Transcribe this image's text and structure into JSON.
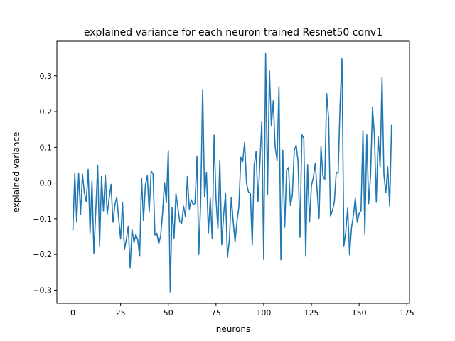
{
  "chart_data": {
    "type": "line",
    "title": "explained variance for each neuron trained Resnet50 conv1",
    "xlabel": "neurons",
    "ylabel": "explained variance",
    "xlim": [
      -8.4,
      176.4
    ],
    "ylim": [
      -0.337,
      0.397
    ],
    "xticks": [
      0,
      25,
      50,
      75,
      100,
      125,
      150,
      175
    ],
    "xtick_labels": [
      "0",
      "25",
      "50",
      "75",
      "100",
      "125",
      "150",
      "175"
    ],
    "yticks": [
      -0.3,
      -0.2,
      -0.1,
      0.0,
      0.1,
      0.2,
      0.3
    ],
    "ytick_labels": [
      "−0.3",
      "−0.2",
      "−0.1",
      "0.0",
      "0.1",
      "0.2",
      "0.3"
    ],
    "grid": false,
    "series_color": "#1f77b4",
    "series": [
      {
        "values": [
          -0.133,
          0.027,
          -0.11,
          0.028,
          -0.088,
          0.025,
          -0.027,
          -0.053,
          0.038,
          -0.141,
          0.005,
          -0.197,
          -0.076,
          0.05,
          -0.176,
          0.018,
          -0.078,
          0.022,
          -0.087,
          -0.043,
          -0.004,
          -0.11,
          -0.062,
          -0.04,
          -0.1,
          -0.157,
          -0.054,
          -0.187,
          -0.159,
          -0.121,
          -0.237,
          -0.13,
          -0.167,
          -0.144,
          -0.16,
          -0.205,
          0.013,
          -0.105,
          -0.005,
          0.02,
          -0.08,
          0.033,
          0.026,
          -0.146,
          -0.141,
          -0.17,
          -0.148,
          -0.084,
          0.001,
          -0.055,
          0.091,
          -0.305,
          -0.069,
          -0.155,
          -0.029,
          -0.07,
          -0.108,
          -0.113,
          -0.065,
          -0.095,
          0.018,
          -0.074,
          -0.047,
          -0.06,
          -0.057,
          0.075,
          -0.2,
          -0.045,
          0.262,
          -0.038,
          0.03,
          -0.14,
          -0.043,
          -0.156,
          0.134,
          -0.045,
          -0.128,
          0.064,
          -0.173,
          -0.088,
          -0.03,
          -0.208,
          -0.16,
          -0.04,
          -0.107,
          -0.165,
          -0.107,
          -0.066,
          0.072,
          0.06,
          0.114,
          -0.001,
          -0.025,
          -0.028,
          -0.173,
          0.05,
          0.088,
          -0.052,
          0.056,
          0.172,
          -0.214,
          0.362,
          -0.031,
          0.314,
          0.16,
          0.23,
          0.1,
          0.063,
          0.27,
          -0.215,
          0.092,
          -0.124,
          0.037,
          0.043,
          -0.063,
          -0.035,
          0.091,
          0.106,
          0.06,
          -0.152,
          0.135,
          0.126,
          -0.205,
          0.051,
          -0.11,
          -0.007,
          0.015,
          0.055,
          -0.022,
          -0.099,
          0.102,
          0.02,
          0.01,
          0.25,
          0.182,
          -0.092,
          -0.077,
          -0.054,
          0.03,
          0.027,
          0.218,
          0.348,
          -0.176,
          -0.137,
          -0.07,
          -0.201,
          -0.126,
          -0.09,
          -0.043,
          -0.11,
          -0.086,
          -0.077,
          0.147,
          -0.144,
          0.135,
          -0.058,
          0.021,
          0.212,
          0.136,
          -0.054,
          0.131,
          0.045,
          0.295,
          0.023,
          -0.027,
          0.045,
          -0.065,
          0.163
        ]
      }
    ]
  }
}
